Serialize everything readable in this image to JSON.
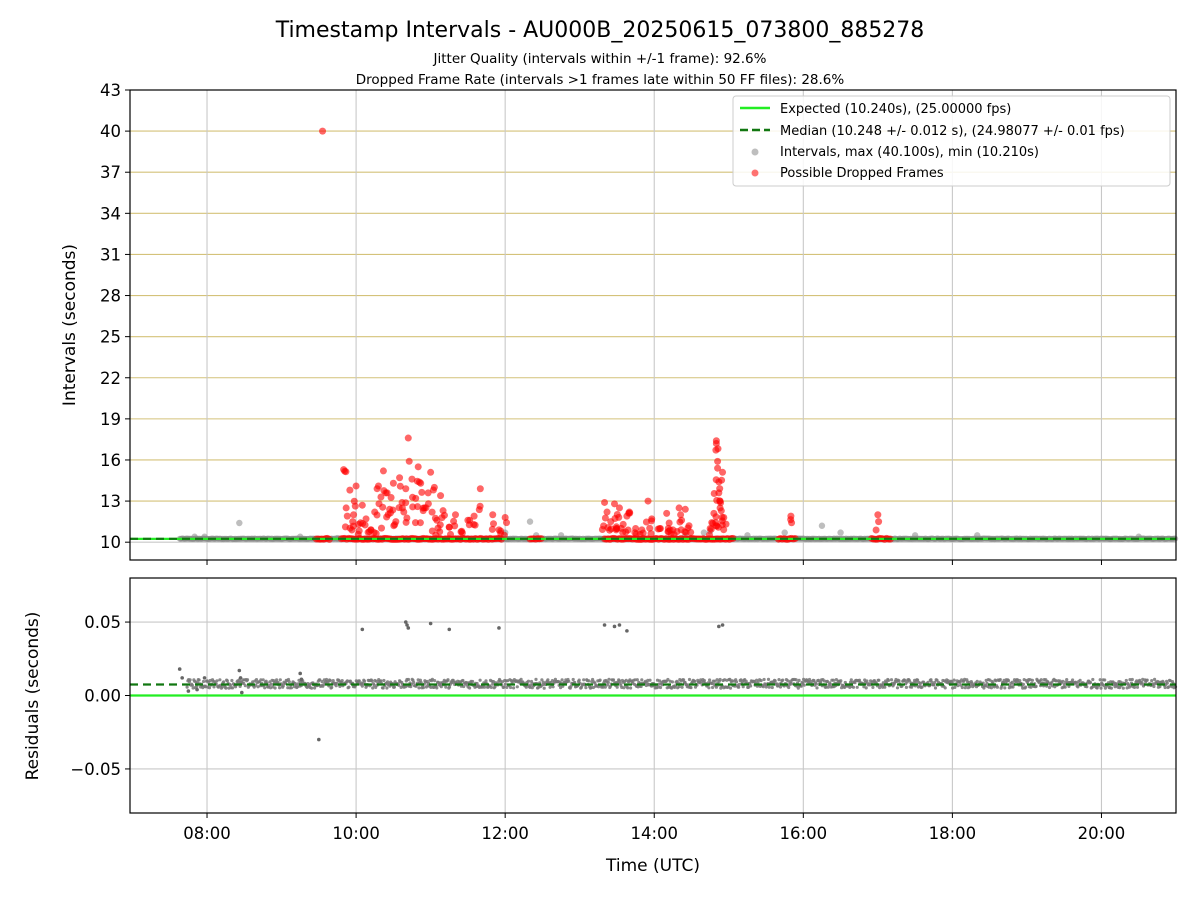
{
  "title": "Timestamp Intervals - AU000B_20250615_073800_885278",
  "subtitle_1": "Jitter Quality (intervals within +/-1 frame): 92.6%",
  "subtitle_2": "Dropped Frame Rate (intervals >1 frames late within 50 FF files): 28.6%",
  "colors": {
    "expected": "#22ee22",
    "median": "#117711",
    "intervals": "#888888",
    "dropped": "#ff0000",
    "hgrid_top": "#d4c27a",
    "grid": "#c8c8c8"
  },
  "chart_data": [
    {
      "type": "scatter",
      "ylabel": "Intervals (seconds)",
      "ylim": [
        8.7,
        43
      ],
      "xlim": [
        "06:58",
        "21:00"
      ],
      "yticks": [
        10,
        13,
        16,
        19,
        22,
        25,
        28,
        31,
        34,
        37,
        40,
        43
      ],
      "grid": true,
      "legend_position": "top-right",
      "legend": [
        "Expected (10.240s), (25.00000 fps)",
        "Median (10.248 +/- 0.012 s), (24.98077 +/- 0.01 fps)",
        "Intervals, max (40.100s), min (10.210s)",
        "Possible Dropped Frames"
      ],
      "expected": 10.24,
      "median": 10.248,
      "intervals_range": [
        "07:38",
        "21:00"
      ],
      "interval_outliers": [
        {
          "x": "07:50",
          "y": 10.4
        },
        {
          "x": "07:58",
          "y": 10.4
        },
        {
          "x": "08:26",
          "y": 11.4
        },
        {
          "x": "09:15",
          "y": 10.4
        },
        {
          "x": "09:45",
          "y": 10.3
        },
        {
          "x": "12:00",
          "y": 10.7
        },
        {
          "x": "12:20",
          "y": 11.5
        },
        {
          "x": "12:25",
          "y": 10.5
        },
        {
          "x": "12:45",
          "y": 10.5
        },
        {
          "x": "14:25",
          "y": 10.5
        },
        {
          "x": "14:40",
          "y": 10.7
        },
        {
          "x": "14:45",
          "y": 10.8
        },
        {
          "x": "15:15",
          "y": 10.5
        },
        {
          "x": "15:45",
          "y": 10.7
        },
        {
          "x": "16:15",
          "y": 11.2
        },
        {
          "x": "16:30",
          "y": 10.7
        },
        {
          "x": "17:30",
          "y": 10.5
        },
        {
          "x": "18:20",
          "y": 10.5
        },
        {
          "x": "20:30",
          "y": 10.4
        }
      ],
      "dropped_frames": [
        {
          "x": "09:33",
          "y": 40.0
        },
        {
          "x": "09:50",
          "y": 15.3
        },
        {
          "x": "09:52",
          "y": 12.5
        },
        {
          "x": "09:55",
          "y": 13.8
        },
        {
          "x": "09:58",
          "y": 12.0
        },
        {
          "x": "10:00",
          "y": 14.1
        },
        {
          "x": "10:02",
          "y": 11.3
        },
        {
          "x": "10:05",
          "y": 12.7
        },
        {
          "x": "10:08",
          "y": 11.7
        },
        {
          "x": "10:12",
          "y": 10.9
        },
        {
          "x": "10:15",
          "y": 12.2
        },
        {
          "x": "10:18",
          "y": 14.1
        },
        {
          "x": "10:20",
          "y": 13.3
        },
        {
          "x": "10:22",
          "y": 15.2
        },
        {
          "x": "10:25",
          "y": 13.6
        },
        {
          "x": "10:27",
          "y": 12.4
        },
        {
          "x": "10:30",
          "y": 14.3
        },
        {
          "x": "10:32",
          "y": 11.5
        },
        {
          "x": "10:35",
          "y": 14.7
        },
        {
          "x": "10:37",
          "y": 12.9
        },
        {
          "x": "10:40",
          "y": 13.9
        },
        {
          "x": "10:42",
          "y": 17.6
        },
        {
          "x": "10:45",
          "y": 14.6
        },
        {
          "x": "10:48",
          "y": 13.2
        },
        {
          "x": "10:50",
          "y": 15.5
        },
        {
          "x": "10:52",
          "y": 14.3
        },
        {
          "x": "10:55",
          "y": 12.5
        },
        {
          "x": "10:58",
          "y": 13.6
        },
        {
          "x": "11:00",
          "y": 15.1
        },
        {
          "x": "11:03",
          "y": 14.0
        },
        {
          "x": "11:05",
          "y": 11.6
        },
        {
          "x": "11:08",
          "y": 13.4
        },
        {
          "x": "11:10",
          "y": 12.3
        },
        {
          "x": "11:15",
          "y": 11.1
        },
        {
          "x": "11:20",
          "y": 12.0
        },
        {
          "x": "11:25",
          "y": 10.8
        },
        {
          "x": "11:30",
          "y": 11.6
        },
        {
          "x": "11:35",
          "y": 11.9
        },
        {
          "x": "11:40",
          "y": 13.9
        },
        {
          "x": "11:50",
          "y": 12.0
        },
        {
          "x": "11:55",
          "y": 10.9
        },
        {
          "x": "12:00",
          "y": 11.8
        },
        {
          "x": "13:20",
          "y": 12.9
        },
        {
          "x": "13:22",
          "y": 12.2
        },
        {
          "x": "13:25",
          "y": 11.5
        },
        {
          "x": "13:28",
          "y": 12.8
        },
        {
          "x": "13:30",
          "y": 11.0
        },
        {
          "x": "13:32",
          "y": 12.5
        },
        {
          "x": "13:35",
          "y": 11.3
        },
        {
          "x": "13:38",
          "y": 11.9
        },
        {
          "x": "13:40",
          "y": 12.2
        },
        {
          "x": "13:45",
          "y": 11.0
        },
        {
          "x": "13:50",
          "y": 10.9
        },
        {
          "x": "13:55",
          "y": 13.0
        },
        {
          "x": "13:58",
          "y": 11.7
        },
        {
          "x": "14:05",
          "y": 11.0
        },
        {
          "x": "14:10",
          "y": 12.1
        },
        {
          "x": "14:12",
          "y": 11.4
        },
        {
          "x": "14:15",
          "y": 10.9
        },
        {
          "x": "14:20",
          "y": 12.5
        },
        {
          "x": "14:22",
          "y": 11.6
        },
        {
          "x": "14:25",
          "y": 12.4
        },
        {
          "x": "14:28",
          "y": 11.2
        },
        {
          "x": "14:45",
          "y": 11.0
        },
        {
          "x": "14:48",
          "y": 12.1
        },
        {
          "x": "14:50",
          "y": 17.4
        },
        {
          "x": "14:50",
          "y": 17.2
        },
        {
          "x": "14:51",
          "y": 15.9
        },
        {
          "x": "14:51",
          "y": 15.4
        },
        {
          "x": "14:52",
          "y": 14.4
        },
        {
          "x": "14:52",
          "y": 13.6
        },
        {
          "x": "14:53",
          "y": 13.0
        },
        {
          "x": "14:53",
          "y": 12.5
        },
        {
          "x": "14:55",
          "y": 15.1
        },
        {
          "x": "14:56",
          "y": 11.8
        },
        {
          "x": "15:50",
          "y": 11.9
        },
        {
          "x": "17:00",
          "y": 12.0
        }
      ],
      "dropped_baseline_segments": [
        [
          "09:28",
          "09:40"
        ],
        [
          "09:48",
          "11:58"
        ],
        [
          "12:20",
          "12:30"
        ],
        [
          "13:20",
          "15:05"
        ],
        [
          "15:40",
          "15:55"
        ],
        [
          "16:55",
          "17:10"
        ]
      ]
    },
    {
      "type": "scatter",
      "ylabel": "Residuals (seconds)",
      "xlabel": "Time (UTC)",
      "ylim": [
        -0.08,
        0.08
      ],
      "yticks": [
        -0.05,
        0.0,
        0.05
      ],
      "ytick_labels": [
        "−0.05",
        "0.00",
        "0.05"
      ],
      "xticks": [
        "08:00",
        "10:00",
        "12:00",
        "14:00",
        "16:00",
        "18:00",
        "20:00"
      ],
      "expected": 0.0,
      "median": 0.0075,
      "residual_band": [
        0.005,
        0.011
      ],
      "residual_outliers": [
        {
          "x": "07:38",
          "y": 0.018
        },
        {
          "x": "07:40",
          "y": 0.012
        },
        {
          "x": "07:45",
          "y": 0.003
        },
        {
          "x": "07:52",
          "y": 0.004
        },
        {
          "x": "07:58",
          "y": 0.012
        },
        {
          "x": "08:26",
          "y": 0.017
        },
        {
          "x": "08:27",
          "y": 0.012
        },
        {
          "x": "08:28",
          "y": 0.002
        },
        {
          "x": "09:15",
          "y": 0.015
        },
        {
          "x": "09:16",
          "y": 0.011
        },
        {
          "x": "09:30",
          "y": -0.03
        },
        {
          "x": "10:05",
          "y": 0.045
        },
        {
          "x": "10:40",
          "y": 0.05
        },
        {
          "x": "10:41",
          "y": 0.048
        },
        {
          "x": "10:42",
          "y": 0.046
        },
        {
          "x": "11:00",
          "y": 0.049
        },
        {
          "x": "11:15",
          "y": 0.045
        },
        {
          "x": "11:55",
          "y": 0.046
        },
        {
          "x": "13:20",
          "y": 0.048
        },
        {
          "x": "13:28",
          "y": 0.047
        },
        {
          "x": "13:32",
          "y": 0.048
        },
        {
          "x": "13:38",
          "y": 0.044
        },
        {
          "x": "14:52",
          "y": 0.047
        },
        {
          "x": "14:55",
          "y": 0.048
        }
      ]
    }
  ]
}
